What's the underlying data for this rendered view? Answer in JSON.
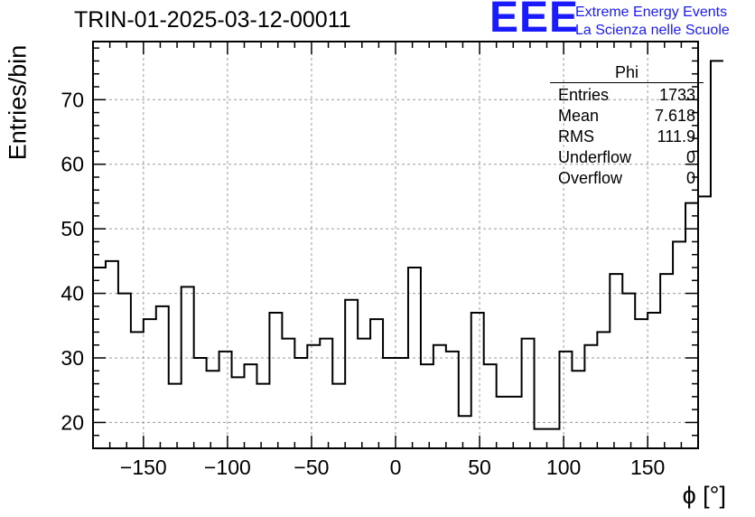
{
  "title": "TRIN-01-2025-03-12-00011",
  "logo": {
    "mark": "EEE",
    "line1": "Extreme Energy Events",
    "line2": "La Scienza nelle Scuole",
    "color": "#1a1aff"
  },
  "stats": {
    "name": "Phi",
    "rows": [
      {
        "label": "Entries",
        "value": "1733"
      },
      {
        "label": "Mean",
        "value": "7.618"
      },
      {
        "label": "RMS",
        "value": "111.9"
      },
      {
        "label": "Underflow",
        "value": "0"
      },
      {
        "label": "Overflow",
        "value": "0"
      }
    ]
  },
  "chart_data": {
    "type": "histogram",
    "title": "TRIN-01-2025-03-12-00011",
    "xlabel": "ϕ [°]",
    "ylabel": "Entries/bin",
    "xlim": [
      -180,
      180
    ],
    "ylim": [
      16,
      79
    ],
    "xticks": [
      -150,
      -100,
      -50,
      0,
      50,
      100,
      150
    ],
    "yticks": [
      20,
      30,
      40,
      50,
      60,
      70
    ],
    "grid": true,
    "bin_width": 7.5,
    "bin_edges_start": -180,
    "values": [
      44,
      45,
      40,
      34,
      36,
      38,
      26,
      41,
      30,
      28,
      31,
      27,
      29,
      26,
      37,
      33,
      30,
      32,
      33,
      26,
      39,
      33,
      36,
      30,
      30,
      44,
      29,
      32,
      31,
      21,
      37,
      29,
      24,
      24,
      33,
      19,
      19,
      31,
      28,
      32,
      34,
      43,
      40,
      36,
      37,
      43,
      48,
      54,
      55,
      76
    ]
  }
}
